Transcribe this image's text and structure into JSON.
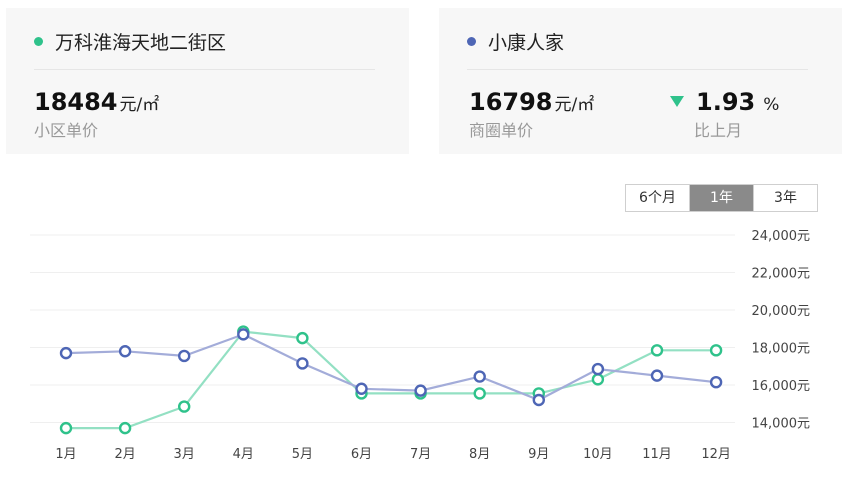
{
  "community": {
    "name": "万科淮海天地二街区",
    "price": "18484",
    "unit": "元/㎡",
    "label": "小区单价",
    "color": "#2fc28b"
  },
  "district": {
    "name": "小康人家",
    "price": "16798",
    "unit": "元/㎡",
    "label": "商圈单价",
    "color": "#4e66b5"
  },
  "change": {
    "value": "1.93",
    "unit": "%",
    "label": "比上月",
    "direction": "down"
  },
  "range_options": [
    {
      "label": "6个月",
      "active": false
    },
    {
      "label": "1年",
      "active": true
    },
    {
      "label": "3年",
      "active": false
    }
  ],
  "chart_data": {
    "type": "line",
    "categories": [
      "1月",
      "2月",
      "3月",
      "4月",
      "5月",
      "6月",
      "7月",
      "8月",
      "9月",
      "10月",
      "11月",
      "12月"
    ],
    "series": [
      {
        "name": "万科淮海天地二街区",
        "color": "#2fc28b",
        "values": [
          13700,
          13700,
          14850,
          18850,
          18500,
          15550,
          15550,
          15550,
          15550,
          16300,
          17850,
          17850
        ]
      },
      {
        "name": "小康人家",
        "color": "#4e66b5",
        "values": [
          17700,
          17800,
          17550,
          18700,
          17150,
          15800,
          15700,
          16450,
          15200,
          16850,
          16500,
          16150
        ]
      }
    ],
    "ylim": [
      13000,
      24000
    ],
    "yticks": [
      14000,
      16000,
      18000,
      20000,
      22000,
      24000
    ],
    "ytick_labels": [
      "14,000元",
      "16,000元",
      "18,000元",
      "20,000元",
      "22,000元",
      "24,000元"
    ],
    "grid": true
  }
}
